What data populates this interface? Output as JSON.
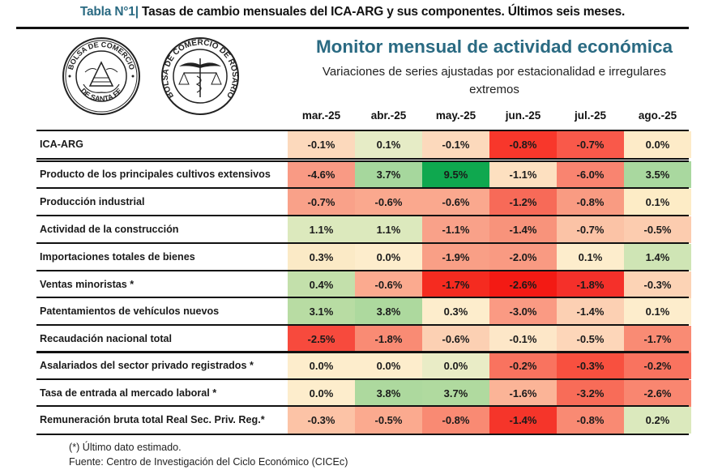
{
  "caption": {
    "label": "Tabla N°1|",
    "text": " Tasas de cambio mensuales del ICA-ARG y sus componentes. Últimos seis meses."
  },
  "logos": [
    {
      "name": "bolsa-de-comercio-santa-fe-seal",
      "top_text": "BOLSA DE COMERCIO",
      "bottom_text": "DE SANTA FE"
    },
    {
      "name": "bolsa-de-comercio-rosario-seal",
      "text": "BOLSA DE COMERCIO DE ROSARIO"
    }
  ],
  "monitor": {
    "title": "Monitor mensual de actividad económica",
    "subtitle_line1": "Variaciones de series ajustadas por estacionalidad e irregulares",
    "subtitle_line2": "extremos"
  },
  "chart_data": {
    "type": "table",
    "title": "Monitor mensual de actividad económica",
    "columns": [
      "mar.-25",
      "abr.-25",
      "may.-25",
      "jun.-25",
      "jul.-25",
      "ago.-25"
    ],
    "rows": [
      {
        "label": "ICA-ARG",
        "values": [
          "-0.1%",
          "0.1%",
          "-0.1%",
          "-0.8%",
          "-0.7%",
          "0.0%"
        ],
        "colors": [
          "#fcd9bc",
          "#e6ecc6",
          "#fcd9bc",
          "#f8372b",
          "#f9594a",
          "#fdebc8"
        ]
      },
      {
        "label": "Producto de los principales cultivos extensivos",
        "values": [
          "-4.6%",
          "3.7%",
          "9.5%",
          "-1.1%",
          "-6.0%",
          "3.5%"
        ],
        "colors": [
          "#f99a84",
          "#a6d79d",
          "#0fa84f",
          "#fde0c0",
          "#f98470",
          "#a9d89f"
        ]
      },
      {
        "label": "Producción industrial",
        "values": [
          "-0.7%",
          "-0.6%",
          "-0.6%",
          "-1.2%",
          "-0.8%",
          "0.1%"
        ],
        "colors": [
          "#f9a189",
          "#faa88e",
          "#faa88e",
          "#f76a58",
          "#f99b82",
          "#fdecc6"
        ]
      },
      {
        "label": "Actividad de la construcción",
        "values": [
          "1.1%",
          "1.1%",
          "-1.1%",
          "-1.4%",
          "-0.7%",
          "-0.5%"
        ],
        "colors": [
          "#dce9bd",
          "#dce9bd",
          "#f9a189",
          "#f8937b",
          "#fbc3a6",
          "#fcccaf"
        ]
      },
      {
        "label": "Importaciones totales de bienes",
        "values": [
          "0.3%",
          "0.0%",
          "-1.9%",
          "-2.0%",
          "0.1%",
          "1.4%"
        ],
        "colors": [
          "#fbeac6",
          "#fdedcc",
          "#f99f86",
          "#f99a82",
          "#fdedcc",
          "#cfe5b5"
        ]
      },
      {
        "label": "Ventas minoristas *",
        "values": [
          "0.4%",
          "-0.6%",
          "-1.7%",
          "-2.6%",
          "-1.8%",
          "-0.3%"
        ],
        "colors": [
          "#c3e0ab",
          "#fbaa8f",
          "#f52b20",
          "#f31a14",
          "#f5302a",
          "#fcd3b5"
        ]
      },
      {
        "label": "Patentamientos de vehículos nuevos",
        "values": [
          "3.1%",
          "3.8%",
          "0.3%",
          "-3.0%",
          "-1.4%",
          "0.1%"
        ],
        "colors": [
          "#b8dca3",
          "#add99e",
          "#fdedcc",
          "#fa9a83",
          "#fcd0b3",
          "#fdedcc"
        ]
      },
      {
        "label": "Recaudación nacional total",
        "values": [
          "-2.5%",
          "-1.8%",
          "-0.6%",
          "-0.1%",
          "-0.5%",
          "-1.7%"
        ],
        "colors": [
          "#f74a3d",
          "#f98b74",
          "#fcd0b3",
          "#fde7c8",
          "#fdd6b9",
          "#f98b74"
        ]
      },
      {
        "label": "Asalariados del sector privado registrados *",
        "values": [
          "0.0%",
          "0.0%",
          "0.0%",
          "-0.2%",
          "-0.3%",
          "-0.2%"
        ],
        "colors": [
          "#fdedcc",
          "#fdedcc",
          "#e9ecc6",
          "#f9735f",
          "#f8503f",
          "#f9735f"
        ]
      },
      {
        "label": "Tasa de entrada al mercado laboral *",
        "values": [
          "0.0%",
          "3.8%",
          "3.7%",
          "-1.6%",
          "-3.2%",
          "-2.6%"
        ],
        "colors": [
          "#fdedcc",
          "#add99e",
          "#b0da9f",
          "#fbb497",
          "#f86c58",
          "#f98670"
        ]
      },
      {
        "label": "Remuneración bruta total Real Sec. Priv. Reg.*",
        "values": [
          "-0.3%",
          "-0.5%",
          "-0.8%",
          "-1.4%",
          "-0.8%",
          "0.2%"
        ],
        "colors": [
          "#fcc3a6",
          "#fbaa8f",
          "#f98a73",
          "#f5352a",
          "#f98a73",
          "#dbe9bd"
        ]
      }
    ]
  },
  "footer": {
    "note": "(*) Último dato estimado.",
    "source": "Fuente: Centro de Investigación del Ciclo Económico (CICEc)"
  }
}
